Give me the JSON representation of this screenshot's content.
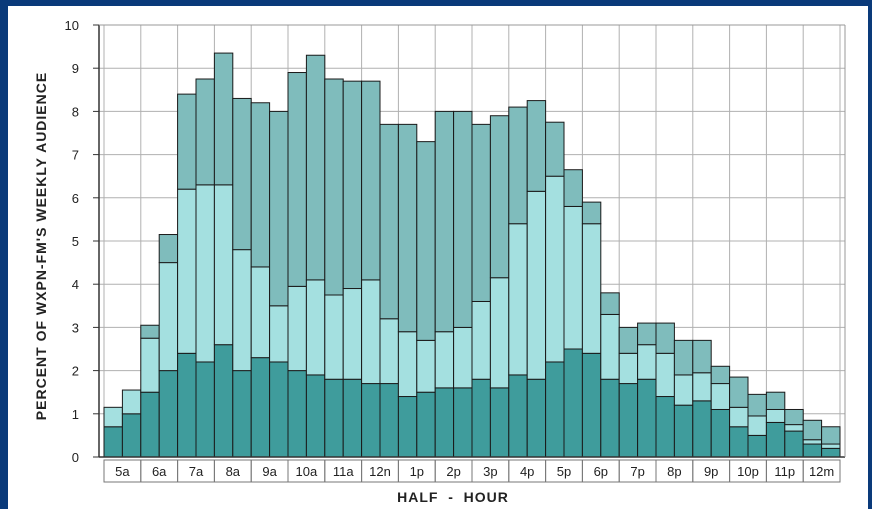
{
  "chart_data": {
    "type": "bar",
    "stacked": true,
    "xlabel": "HALF  -  HOUR",
    "ylabel": "PERCENT OF WXPN-FM'S WEEKLY AUDIENCE",
    "ylim": [
      0,
      10
    ],
    "yticks": [
      0,
      1,
      2,
      3,
      4,
      5,
      6,
      7,
      8,
      9,
      10
    ],
    "grid": true,
    "hour_labels": [
      "5a",
      "6a",
      "7a",
      "8a",
      "9a",
      "10a",
      "11a",
      "12n",
      "1p",
      "2p",
      "3p",
      "4p",
      "5p",
      "6p",
      "7p",
      "8p",
      "9p",
      "10p",
      "11p",
      "12m"
    ],
    "bar_count": 40,
    "series": [
      {
        "color": "#3f9c9c",
        "values": [
          0.7,
          1.0,
          1.5,
          2.0,
          2.4,
          2.2,
          2.6,
          2.0,
          2.3,
          2.2,
          2.0,
          1.9,
          1.8,
          1.8,
          1.7,
          1.7,
          1.4,
          1.5,
          1.6,
          1.6,
          1.8,
          1.6,
          1.9,
          1.8,
          2.2,
          2.5,
          2.4,
          1.8,
          1.7,
          1.8,
          1.4,
          1.2,
          1.3,
          1.1,
          0.7,
          0.5,
          0.8,
          0.6,
          0.3,
          0.2
        ]
      },
      {
        "color": "#a4e0e0",
        "values": [
          0.45,
          0.55,
          1.25,
          2.5,
          3.8,
          4.1,
          3.7,
          2.8,
          2.1,
          1.3,
          1.95,
          2.2,
          1.95,
          2.1,
          2.4,
          1.5,
          1.5,
          1.2,
          1.3,
          1.4,
          1.8,
          2.55,
          3.5,
          4.35,
          4.3,
          3.3,
          3.0,
          1.5,
          0.7,
          0.8,
          1.0,
          0.7,
          0.65,
          0.6,
          0.45,
          0.45,
          0.3,
          0.15,
          0.1,
          0.1
        ]
      },
      {
        "color": "#7fbcbc",
        "values": [
          0.0,
          0.0,
          0.3,
          0.65,
          2.2,
          2.45,
          3.05,
          3.5,
          3.8,
          4.5,
          4.95,
          5.2,
          5.0,
          4.8,
          4.6,
          4.5,
          4.8,
          4.6,
          5.1,
          5.0,
          4.1,
          3.75,
          2.7,
          2.1,
          1.25,
          0.85,
          0.5,
          0.5,
          0.6,
          0.5,
          0.7,
          0.8,
          0.75,
          0.4,
          0.7,
          0.5,
          0.4,
          0.35,
          0.45,
          0.4
        ]
      }
    ]
  }
}
